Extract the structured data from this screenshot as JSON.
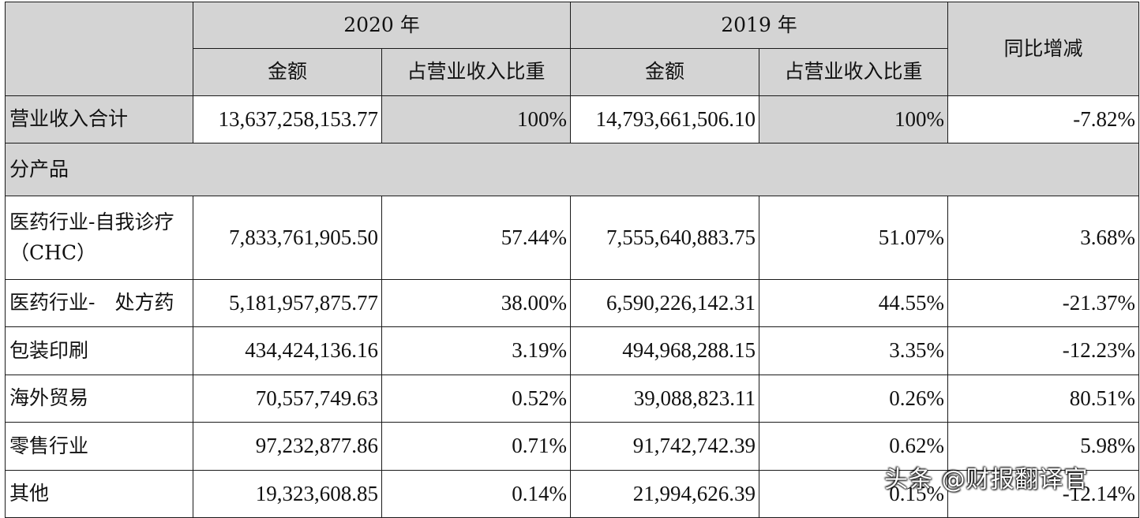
{
  "header": {
    "year_2020": "2020 年",
    "year_2019": "2019 年",
    "yoy": "同比增减",
    "amount": "金额",
    "share": "占营业收入比重"
  },
  "total": {
    "label": "营业收入合计",
    "amt_2020": "13,637,258,153.77",
    "pct_2020": "100%",
    "amt_2019": "14,793,661,506.10",
    "pct_2019": "100%",
    "yoy": "-7.82%"
  },
  "section": "分产品",
  "rows": [
    {
      "label": "医药行业-自我诊疗（CHC）",
      "amt_2020": "7,833,761,905.50",
      "pct_2020": "57.44%",
      "amt_2019": "7,555,640,883.75",
      "pct_2019": "51.07%",
      "yoy": "3.68%"
    },
    {
      "label": "医药行业-　处方药",
      "amt_2020": "5,181,957,875.77",
      "pct_2020": "38.00%",
      "amt_2019": "6,590,226,142.31",
      "pct_2019": "44.55%",
      "yoy": "-21.37%"
    },
    {
      "label": "包装印刷",
      "amt_2020": "434,424,136.16",
      "pct_2020": "3.19%",
      "amt_2019": "494,968,288.15",
      "pct_2019": "3.35%",
      "yoy": "-12.23%"
    },
    {
      "label": "海外贸易",
      "amt_2020": "70,557,749.63",
      "pct_2020": "0.52%",
      "amt_2019": "39,088,823.11",
      "pct_2019": "0.26%",
      "yoy": "80.51%"
    },
    {
      "label": "零售行业",
      "amt_2020": "97,232,877.86",
      "pct_2020": "0.71%",
      "amt_2019": "91,742,742.39",
      "pct_2019": "0.62%",
      "yoy": "5.98%"
    },
    {
      "label": "其他",
      "amt_2020": "19,323,608.85",
      "pct_2020": "0.14%",
      "amt_2019": "21,994,626.39",
      "pct_2019": "0.15%",
      "yoy": "-12.14%"
    }
  ],
  "watermark": "头条 @财报翻译官"
}
